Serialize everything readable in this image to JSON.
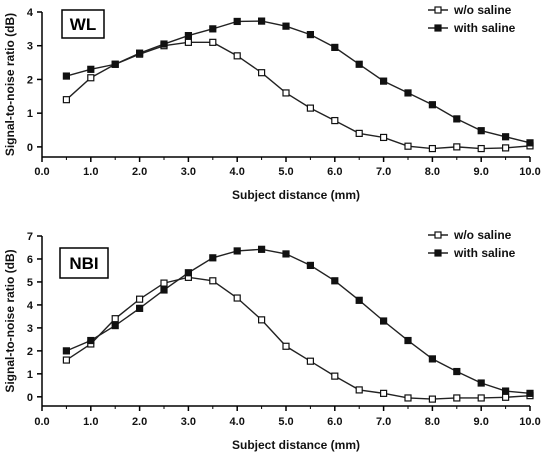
{
  "chart_data": [
    {
      "type": "line",
      "badge": "WL",
      "xlabel": "Subject distance (mm)",
      "ylabel": "Signal-to-noise ratio (dB)",
      "xlim": [
        0,
        10
      ],
      "ylim": [
        -0.3,
        4
      ],
      "xticks": [
        "0.0",
        "1.0",
        "2.0",
        "3.0",
        "4.0",
        "5.0",
        "6.0",
        "7.0",
        "8.0",
        "9.0",
        "10.0"
      ],
      "yticks": [
        "0",
        "1",
        "2",
        "3",
        "4"
      ],
      "legend_position": "top-right",
      "series": [
        {
          "name": "w/o saline",
          "marker": "open-square",
          "x": [
            0.5,
            1.0,
            1.5,
            2.0,
            2.5,
            3.0,
            3.5,
            4.0,
            4.5,
            5.0,
            5.5,
            6.0,
            6.5,
            7.0,
            7.5,
            8.0,
            8.5,
            9.0,
            9.5,
            10.0
          ],
          "y": [
            1.4,
            2.05,
            2.45,
            2.75,
            3.0,
            3.1,
            3.1,
            2.7,
            2.2,
            1.6,
            1.15,
            0.78,
            0.4,
            0.28,
            0.02,
            -0.05,
            0.0,
            -0.05,
            -0.03,
            0.03
          ]
        },
        {
          "name": "with saline",
          "marker": "filled-square",
          "x": [
            0.5,
            1.0,
            1.5,
            2.0,
            2.5,
            3.0,
            3.5,
            4.0,
            4.5,
            5.0,
            5.5,
            6.0,
            6.5,
            7.0,
            7.5,
            8.0,
            8.5,
            9.0,
            9.5,
            10.0
          ],
          "y": [
            2.1,
            2.3,
            2.45,
            2.78,
            3.05,
            3.3,
            3.5,
            3.72,
            3.73,
            3.58,
            3.33,
            2.95,
            2.45,
            1.95,
            1.6,
            1.25,
            0.83,
            0.48,
            0.3,
            0.12
          ]
        }
      ]
    },
    {
      "type": "line",
      "badge": "NBI",
      "xlabel": "Subject distance (mm)",
      "ylabel": "Signal-to-noise ratio (dB)",
      "xlim": [
        0,
        10
      ],
      "ylim": [
        -0.4,
        7
      ],
      "xticks": [
        "0.0",
        "1.0",
        "2.0",
        "3.0",
        "4.0",
        "5.0",
        "6.0",
        "7.0",
        "8.0",
        "9.0",
        "10.0"
      ],
      "yticks": [
        "0",
        "1",
        "2",
        "3",
        "4",
        "5",
        "6",
        "7"
      ],
      "legend_position": "top-right",
      "series": [
        {
          "name": "w/o saline",
          "marker": "open-square",
          "x": [
            0.5,
            1.0,
            1.5,
            2.0,
            2.5,
            3.0,
            3.5,
            4.0,
            4.5,
            5.0,
            5.5,
            6.0,
            6.5,
            7.0,
            7.5,
            8.0,
            8.5,
            9.0,
            9.5,
            10.0
          ],
          "y": [
            1.6,
            2.3,
            3.4,
            4.25,
            4.95,
            5.2,
            5.05,
            4.3,
            3.35,
            2.2,
            1.55,
            0.9,
            0.3,
            0.15,
            -0.05,
            -0.1,
            -0.05,
            -0.05,
            -0.02,
            0.05
          ]
        },
        {
          "name": "with saline",
          "marker": "filled-square",
          "x": [
            0.5,
            1.0,
            1.5,
            2.0,
            2.5,
            3.0,
            3.5,
            4.0,
            4.5,
            5.0,
            5.5,
            6.0,
            6.5,
            7.0,
            7.5,
            8.0,
            8.5,
            9.0,
            9.5,
            10.0
          ],
          "y": [
            2.0,
            2.45,
            3.1,
            3.85,
            4.65,
            5.4,
            6.05,
            6.35,
            6.42,
            6.22,
            5.72,
            5.05,
            4.2,
            3.3,
            2.45,
            1.65,
            1.1,
            0.6,
            0.25,
            0.15
          ]
        }
      ]
    }
  ]
}
